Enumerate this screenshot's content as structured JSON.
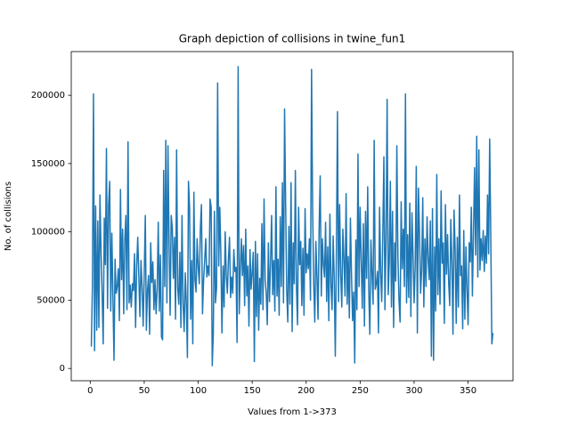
{
  "chart_data": {
    "type": "line",
    "title": "Graph depiction of collisions in twine_fun1",
    "x_label": "Values from 1->373",
    "y_label": "No. of collisions",
    "color": "#1f77b4",
    "xlim": [
      -17.6,
      391.6
    ],
    "ylim": [
      -9000,
      232000
    ],
    "xticks": [
      0,
      50,
      100,
      150,
      200,
      250,
      300,
      350
    ],
    "yticks": [
      0,
      50000,
      100000,
      150000,
      200000
    ],
    "x": [
      1,
      2,
      3,
      4,
      5,
      6,
      7,
      8,
      9,
      10,
      11,
      12,
      13,
      14,
      15,
      16,
      17,
      18,
      19,
      20,
      21,
      22,
      23,
      24,
      25,
      26,
      27,
      28,
      29,
      30,
      31,
      32,
      33,
      34,
      35,
      36,
      37,
      38,
      39,
      40,
      41,
      42,
      43,
      44,
      45,
      46,
      47,
      48,
      49,
      50,
      51,
      52,
      53,
      54,
      55,
      56,
      57,
      58,
      59,
      60,
      61,
      62,
      63,
      64,
      65,
      66,
      67,
      68,
      69,
      70,
      71,
      72,
      73,
      74,
      75,
      76,
      77,
      78,
      79,
      80,
      81,
      82,
      83,
      84,
      85,
      86,
      87,
      88,
      89,
      90,
      91,
      92,
      93,
      94,
      95,
      96,
      97,
      98,
      99,
      100,
      101,
      102,
      103,
      104,
      105,
      106,
      107,
      108,
      109,
      110,
      111,
      112,
      113,
      114,
      115,
      116,
      117,
      118,
      119,
      120,
      121,
      122,
      123,
      124,
      125,
      126,
      127,
      128,
      129,
      130,
      131,
      132,
      133,
      134,
      135,
      136,
      137,
      138,
      139,
      140,
      141,
      142,
      143,
      144,
      145,
      146,
      147,
      148,
      149,
      150,
      151,
      152,
      153,
      154,
      155,
      156,
      157,
      158,
      159,
      160,
      161,
      162,
      163,
      164,
      165,
      166,
      167,
      168,
      169,
      170,
      171,
      172,
      173,
      174,
      175,
      176,
      177,
      178,
      179,
      180,
      181,
      182,
      183,
      184,
      185,
      186,
      187,
      188,
      189,
      190,
      191,
      192,
      193,
      194,
      195,
      196,
      197,
      198,
      199,
      200,
      201,
      202,
      203,
      204,
      205,
      206,
      207,
      208,
      209,
      210,
      211,
      212,
      213,
      214,
      215,
      216,
      217,
      218,
      219,
      220,
      221,
      222,
      223,
      224,
      225,
      226,
      227,
      228,
      229,
      230,
      231,
      232,
      233,
      234,
      235,
      236,
      237,
      238,
      239,
      240,
      241,
      242,
      243,
      244,
      245,
      246,
      247,
      248,
      249,
      250,
      251,
      252,
      253,
      254,
      255,
      256,
      257,
      258,
      259,
      260,
      261,
      262,
      263,
      264,
      265,
      266,
      267,
      268,
      269,
      270,
      271,
      272,
      273,
      274,
      275,
      276,
      277,
      278,
      279,
      280,
      281,
      282,
      283,
      284,
      285,
      286,
      287,
      288,
      289,
      290,
      291,
      292,
      293,
      294,
      295,
      296,
      297,
      298,
      299,
      300,
      301,
      302,
      303,
      304,
      305,
      306,
      307,
      308,
      309,
      310,
      311,
      312,
      313,
      314,
      315,
      316,
      317,
      318,
      319,
      320,
      321,
      322,
      323,
      324,
      325,
      326,
      327,
      328,
      329,
      330,
      331,
      332,
      333,
      334,
      335,
      336,
      337,
      338,
      339,
      340,
      341,
      342,
      343,
      344,
      345,
      346,
      347,
      348,
      349,
      350,
      351,
      352,
      353,
      354,
      355,
      356,
      357,
      358,
      359,
      360,
      361,
      362,
      363,
      364,
      365,
      366,
      367,
      368,
      369,
      370,
      371,
      372,
      373
    ],
    "values": [
      16000,
      60000,
      201000,
      13000,
      119000,
      28000,
      108000,
      30000,
      127000,
      85000,
      55000,
      18000,
      110000,
      76000,
      161000,
      44000,
      120000,
      137000,
      42000,
      99000,
      53000,
      6000,
      80000,
      55000,
      60000,
      73000,
      35000,
      131000,
      65000,
      102000,
      40000,
      94000,
      112000,
      43000,
      166000,
      48000,
      61000,
      45000,
      62000,
      57000,
      84000,
      30000,
      75000,
      96000,
      67000,
      38000,
      79000,
      60000,
      31000,
      68000,
      112000,
      28000,
      57000,
      68000,
      25000,
      92000,
      63000,
      78000,
      43000,
      65000,
      40000,
      58000,
      107000,
      42000,
      83000,
      23000,
      21000,
      145000,
      60000,
      167000,
      48000,
      163000,
      92000,
      39000,
      112000,
      103000,
      66000,
      96000,
      36000,
      160000,
      59000,
      47000,
      85000,
      30000,
      112000,
      47000,
      27000,
      70000,
      48000,
      8000,
      137000,
      118000,
      36000,
      79000,
      18000,
      129000,
      65000,
      56000,
      95000,
      74000,
      62000,
      102000,
      120000,
      40000,
      65000,
      79000,
      95000,
      67000,
      75000,
      68000,
      124000,
      118000,
      2000,
      26000,
      115000,
      48000,
      59000,
      209000,
      75000,
      118000,
      83000,
      26000,
      75000,
      45000,
      100000,
      68000,
      55000,
      80000,
      96000,
      52000,
      67000,
      55000,
      87000,
      71000,
      74000,
      19000,
      221000,
      40000,
      72000,
      95000,
      68000,
      90000,
      46000,
      102000,
      53000,
      75000,
      31000,
      87000,
      58000,
      70000,
      85000,
      5000,
      93000,
      38000,
      84000,
      28000,
      66000,
      47000,
      106000,
      43000,
      124000,
      65000,
      55000,
      32000,
      92000,
      49000,
      77000,
      112000,
      54000,
      79000,
      42000,
      133000,
      53000,
      80000,
      39000,
      111000,
      60000,
      136000,
      48000,
      190000,
      120000,
      56000,
      34000,
      104000,
      47000,
      136000,
      27000,
      92000,
      62000,
      145000,
      60000,
      32000,
      118000,
      76000,
      93000,
      46000,
      88000,
      39000,
      117000,
      70000,
      84000,
      73000,
      95000,
      50000,
      219000,
      116000,
      62000,
      34000,
      93000,
      67000,
      36000,
      102000,
      141000,
      53000,
      95000,
      76000,
      67000,
      107000,
      49000,
      89000,
      35000,
      113000,
      62000,
      43000,
      97000,
      66000,
      9000,
      84000,
      188000,
      49000,
      120000,
      69000,
      45000,
      102000,
      80000,
      53000,
      128000,
      47000,
      82000,
      37000,
      110000,
      69000,
      35000,
      56000,
      4000,
      94000,
      43000,
      157000,
      60000,
      118000,
      79000,
      44000,
      106000,
      31000,
      115000,
      66000,
      133000,
      56000,
      25000,
      94000,
      69000,
      47000,
      167000,
      58000,
      62000,
      71000,
      26000,
      118000,
      70000,
      49000,
      98000,
      155000,
      43000,
      94000,
      197000,
      54000,
      78000,
      137000,
      45000,
      115000,
      30000,
      92000,
      64000,
      163000,
      81000,
      50000,
      34000,
      122000,
      73000,
      102000,
      60000,
      201000,
      48000,
      98000,
      52000,
      121000,
      38000,
      114000,
      83000,
      48000,
      75000,
      148000,
      26000,
      132000,
      99000,
      55000,
      72000,
      125000,
      45000,
      95000,
      60000,
      111000,
      80000,
      65000,
      108000,
      9000,
      117000,
      6000,
      89000,
      42000,
      142000,
      54000,
      95000,
      47000,
      130000,
      77000,
      92000,
      33000,
      120000,
      69000,
      98000,
      63000,
      46000,
      109000,
      78000,
      25000,
      116000,
      87000,
      33000,
      96000,
      45000,
      127000,
      68000,
      75000,
      29000,
      101000,
      36000,
      89000,
      58000,
      32000,
      92000,
      78000,
      118000,
      53000,
      100000,
      147000,
      83000,
      170000,
      67000,
      160000,
      72000,
      95000,
      79000,
      101000,
      71000,
      97000,
      77000,
      127000,
      84000,
      168000,
      98000,
      18000,
      26000
    ]
  }
}
